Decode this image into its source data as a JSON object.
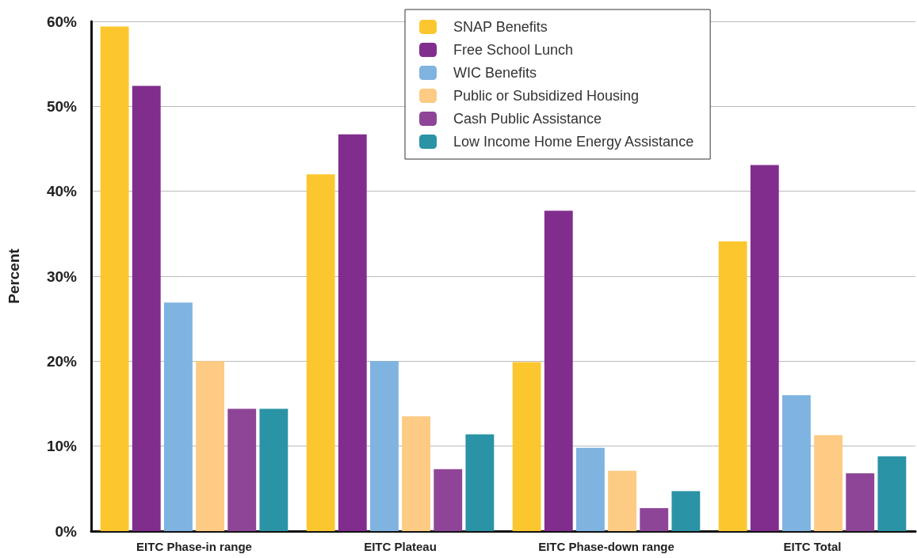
{
  "chart_data": {
    "type": "bar",
    "ylabel": "Percent",
    "categories": [
      "EITC Phase-in range",
      "EITC Plateau",
      "EITC Phase-down range",
      "EITC Total"
    ],
    "series": [
      {
        "name": "SNAP Benefits",
        "color": "#fcc72e",
        "values": [
          59.4,
          42.0,
          19.9,
          34.1
        ]
      },
      {
        "name": "Free School Lunch",
        "color": "#812d8e",
        "values": [
          52.4,
          46.7,
          37.7,
          43.1
        ]
      },
      {
        "name": "WIC Benefits",
        "color": "#7fb3e0",
        "values": [
          26.9,
          20.0,
          9.8,
          16.0
        ]
      },
      {
        "name": "Public or Subsidized Housing",
        "color": "#fdcb83",
        "values": [
          20.0,
          13.5,
          7.1,
          11.3
        ]
      },
      {
        "name": "Cash Public Assistance",
        "color": "#8e4598",
        "values": [
          14.4,
          7.3,
          2.7,
          6.8
        ]
      },
      {
        "name": "Low Income Home Energy Assistance",
        "color": "#2a93a5",
        "values": [
          14.4,
          11.4,
          4.7,
          8.8
        ]
      }
    ],
    "ylim": [
      0,
      60
    ],
    "yticks": [
      {
        "value": 0,
        "label": "0%"
      },
      {
        "value": 10,
        "label": "10%"
      },
      {
        "value": 20,
        "label": "20%"
      },
      {
        "value": 30,
        "label": "30%"
      },
      {
        "value": 40,
        "label": "40%"
      },
      {
        "value": 50,
        "label": "50%"
      },
      {
        "value": 60,
        "label": "60%"
      }
    ],
    "grid": "y",
    "legend": "top"
  }
}
